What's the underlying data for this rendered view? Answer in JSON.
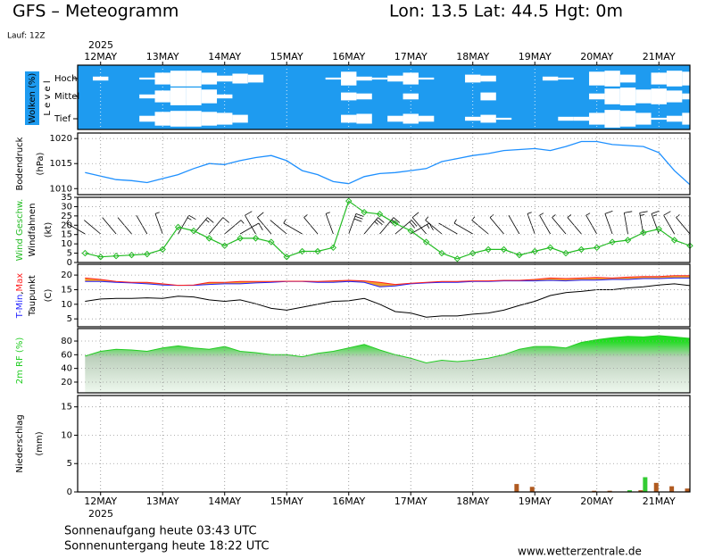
{
  "header": {
    "title": "GFS – Meteogramm",
    "location": "Lon: 13.5 Lat: 44.5 Hgt: 0m",
    "run": "Lauf: 12Z"
  },
  "footer": {
    "sunrise": "Sonnenaufgang heute 03:43 UTC",
    "sunset": "Sonnenuntergang heute 18:22 UTC",
    "source": "www.wetterzentrale.de"
  },
  "chart_data": {
    "type": "meteogram",
    "year": "2025",
    "xlim": [
      11.63,
      21.5
    ],
    "xticks": [
      {
        "value": 12,
        "label": "12MAY"
      },
      {
        "value": 13,
        "label": "13MAY"
      },
      {
        "value": 14,
        "label": "14MAY"
      },
      {
        "value": 15,
        "label": "15MAY"
      },
      {
        "value": 16,
        "label": "16MAY"
      },
      {
        "value": 17,
        "label": "17MAY"
      },
      {
        "value": 18,
        "label": "18MAY"
      },
      {
        "value": 19,
        "label": "19MAY"
      },
      {
        "value": 20,
        "label": "20MAY"
      },
      {
        "value": 21,
        "label": "21MAY"
      }
    ],
    "x": [
      11.75,
      12,
      12.25,
      12.5,
      12.75,
      13,
      13.25,
      13.5,
      13.75,
      14,
      14.25,
      14.5,
      14.75,
      15,
      15.25,
      15.5,
      15.75,
      16,
      16.25,
      16.5,
      16.75,
      17,
      17.25,
      17.5,
      17.75,
      18,
      18.25,
      18.5,
      18.75,
      19,
      19.25,
      19.5,
      19.75,
      20,
      20.25,
      20.5,
      20.75,
      21,
      21.25,
      21.5
    ],
    "panels": [
      {
        "type": "cloud",
        "ylabel": "Wolken (%)",
        "level_label": "L e v e l",
        "color": "#1e9bf0",
        "series": [
          {
            "name": "Hoch",
            "color": "#ffffff",
            "values": [
              0,
              20,
              0,
              0,
              10,
              60,
              80,
              80,
              60,
              30,
              50,
              40,
              0,
              0,
              0,
              0,
              10,
              70,
              20,
              10,
              30,
              60,
              10,
              0,
              0,
              40,
              30,
              0,
              0,
              0,
              20,
              10,
              0,
              70,
              80,
              40,
              0,
              60,
              80,
              70
            ]
          },
          {
            "name": "Mittel",
            "color": "#ffffff",
            "values": [
              0,
              0,
              0,
              0,
              20,
              60,
              90,
              90,
              70,
              20,
              0,
              0,
              0,
              0,
              0,
              0,
              0,
              40,
              30,
              0,
              0,
              30,
              0,
              0,
              0,
              0,
              40,
              0,
              0,
              0,
              0,
              0,
              0,
              30,
              80,
              90,
              70,
              80,
              60,
              30
            ]
          },
          {
            "name": "Tief",
            "color": "#ffffff",
            "values": [
              0,
              0,
              0,
              0,
              30,
              70,
              80,
              80,
              70,
              60,
              40,
              0,
              0,
              0,
              0,
              0,
              0,
              40,
              50,
              0,
              30,
              50,
              30,
              0,
              0,
              20,
              40,
              10,
              0,
              0,
              0,
              20,
              20,
              60,
              90,
              80,
              60,
              10,
              30,
              60
            ]
          }
        ]
      },
      {
        "type": "line",
        "ylabel": "Bodendruck",
        "unit": "(hPa)",
        "ylim": [
          1008.8,
          1021.1
        ],
        "yticks": [
          1010,
          1015,
          1020
        ],
        "grid": true,
        "series": [
          {
            "color": "#1e90ff",
            "values": [
              1013.2,
              1012.5,
              1011.8,
              1011.6,
              1011.2,
              1012.0,
              1012.8,
              1014.0,
              1015.0,
              1014.8,
              1015.6,
              1016.2,
              1016.6,
              1015.6,
              1013.6,
              1012.8,
              1011.4,
              1011.0,
              1012.4,
              1013.0,
              1013.2,
              1013.6,
              1014.0,
              1015.4,
              1016.0,
              1016.6,
              1017.0,
              1017.6,
              1017.8,
              1018.0,
              1017.6,
              1018.4,
              1019.4,
              1019.4,
              1018.8,
              1018.6,
              1018.4,
              1017.2,
              1013.6,
              1010.8
            ]
          }
        ]
      },
      {
        "type": "wind",
        "unit": "(kt)",
        "ylim": [
          0,
          35
        ],
        "yticks": [
          0,
          5,
          10,
          15,
          20,
          25,
          30,
          35
        ],
        "grid": true,
        "series": [
          {
            "name": "Wind Geschw.",
            "color": "#22bb22",
            "values": [
              5,
              3,
              3.5,
              4,
              4.5,
              7,
              19,
              17,
              13,
              9,
              13,
              13,
              11,
              3,
              6,
              6,
              8,
              33,
              27,
              26,
              21,
              17,
              11,
              5,
              2,
              5,
              7,
              7,
              4,
              6,
              8,
              5,
              7,
              8,
              11,
              12,
              16,
              18,
              12,
              9
            ]
          },
          {
            "name": "Windfahnen",
            "color": "#000000",
            "values": [
              300,
              310,
              320,
              320,
              330,
              340,
              30,
              40,
              40,
              50,
              60,
              330,
              320,
              310,
              300,
              320,
              340,
              20,
              40,
              40,
              50,
              60,
              320,
              310,
              300,
              300,
              310,
              320,
              330,
              340,
              330,
              320,
              320,
              330,
              340,
              350,
              350,
              340,
              330,
              320
            ]
          }
        ]
      },
      {
        "type": "temperature",
        "unit": "(C)",
        "separator": ",",
        "ylim": [
          2.3,
          23.7
        ],
        "yticks": [
          5,
          10,
          15,
          20
        ],
        "grid": true,
        "fill": "#f0a030",
        "series": [
          {
            "name": "T-Min",
            "color": "#2020ff",
            "values": [
              17.8,
              17.8,
              17.5,
              17.3,
              17.0,
              16.6,
              16.5,
              16.5,
              16.8,
              17.0,
              17.0,
              17.3,
              17.5,
              17.8,
              17.8,
              17.5,
              17.5,
              17.8,
              17.5,
              16.0,
              16.3,
              17.0,
              17.3,
              17.5,
              17.5,
              17.8,
              17.8,
              18.0,
              18.0,
              18.0,
              18.2,
              18.0,
              18.3,
              18.3,
              18.5,
              18.5,
              18.8,
              18.8,
              19.0,
              19.0
            ]
          },
          {
            "name": "Max",
            "color": "#ff2020",
            "values": [
              19.0,
              18.5,
              17.8,
              17.5,
              17.5,
              17.0,
              16.5,
              16.6,
              17.5,
              17.5,
              17.8,
              17.8,
              17.8,
              17.9,
              17.9,
              17.8,
              18.0,
              18.2,
              18.0,
              17.5,
              16.8,
              17.2,
              17.5,
              17.8,
              17.8,
              18.0,
              18.0,
              18.2,
              18.2,
              18.5,
              19.0,
              18.8,
              19.0,
              19.2,
              19.0,
              19.3,
              19.5,
              19.5,
              19.8,
              19.8
            ]
          },
          {
            "name": "Taupunkt",
            "color": "#000000",
            "values": [
              11.0,
              11.8,
              12.0,
              12.0,
              12.2,
              12.0,
              12.8,
              12.5,
              11.5,
              11.0,
              11.5,
              10.2,
              8.6,
              8.0,
              9.0,
              10.0,
              11.0,
              11.2,
              12.0,
              10.0,
              7.5,
              7.0,
              5.6,
              6.0,
              6.0,
              6.6,
              7.0,
              8.0,
              9.6,
              11.0,
              13.0,
              14.0,
              14.4,
              15.0,
              15.0,
              15.6,
              16.0,
              16.6,
              17.0,
              16.4
            ]
          }
        ]
      },
      {
        "type": "area",
        "ylim": [
          4.3,
          98.3
        ],
        "yticks": [
          20,
          40,
          60,
          80
        ],
        "grid": true,
        "series": [
          {
            "name": "2m RF (%)",
            "color": "#22cc22",
            "values": [
              58,
              65,
              68,
              67,
              65,
              70,
              73,
              70,
              68,
              72,
              65,
              63,
              60,
              60,
              57,
              62,
              65,
              70,
              75,
              67,
              60,
              55,
              48,
              52,
              50,
              52,
              55,
              60,
              68,
              72,
              72,
              70,
              78,
              82,
              85,
              87,
              86,
              88,
              86,
              84
            ]
          }
        ]
      },
      {
        "type": "bar",
        "ylabel": "Niederschlag",
        "unit": "(mm)",
        "ylim": [
          0,
          17
        ],
        "yticks": [
          0,
          5,
          10,
          15
        ],
        "grid": true,
        "series": [
          {
            "color": "#b05a20",
            "values": [
              0,
              0,
              0,
              0,
              0,
              0,
              0,
              0,
              0,
              0,
              0,
              0,
              0,
              0,
              0,
              0,
              0,
              0,
              0,
              0,
              0,
              0,
              0,
              0,
              0,
              0,
              0,
              0,
              1.4,
              0.9,
              0,
              0,
              0,
              0.2,
              0.2,
              0,
              0.3,
              1.6,
              1.0,
              0.6
            ]
          },
          {
            "color": "#33cc33",
            "values": [
              0,
              0,
              0,
              0,
              0,
              0,
              0,
              0,
              0,
              0,
              0,
              0,
              0,
              0,
              0,
              0,
              0,
              0,
              0,
              0,
              0,
              0,
              0,
              0,
              0,
              0,
              0,
              0,
              0,
              0,
              0,
              0,
              0,
              0,
              0,
              0.3,
              2.6,
              0,
              0,
              0
            ]
          }
        ]
      }
    ]
  }
}
